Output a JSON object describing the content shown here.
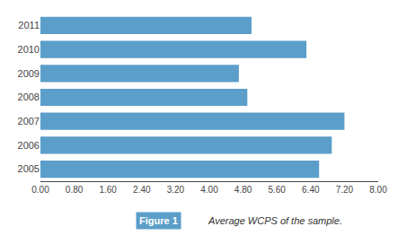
{
  "chart_data": {
    "type": "bar",
    "orientation": "horizontal",
    "categories": [
      "2011",
      "2010",
      "2009",
      "2008",
      "2007",
      "2006",
      "2005"
    ],
    "values": [
      5.0,
      6.3,
      4.7,
      4.9,
      7.2,
      6.9,
      6.6
    ],
    "color": "#5b9ec9",
    "xlim": [
      0,
      8.0
    ],
    "xticks": [
      {
        "value": 0.0,
        "label": "0.00"
      },
      {
        "value": 0.8,
        "label": "0.80"
      },
      {
        "value": 1.6,
        "label": "1.60"
      },
      {
        "value": 2.4,
        "label": "2.40"
      },
      {
        "value": 3.2,
        "label": "3.20"
      },
      {
        "value": 4.0,
        "label": "4.00"
      },
      {
        "value": 4.8,
        "label": "4.80"
      },
      {
        "value": 5.6,
        "label": "5.60"
      },
      {
        "value": 6.4,
        "label": "6.40"
      },
      {
        "value": 7.2,
        "label": "7.20"
      },
      {
        "value": 8.0,
        "label": "8.00"
      }
    ],
    "grid": false,
    "annotations": [
      {
        "text": "Figure 1",
        "color": "#5b9ec9"
      },
      {
        "text": "Average WCPS of the sample."
      }
    ]
  }
}
